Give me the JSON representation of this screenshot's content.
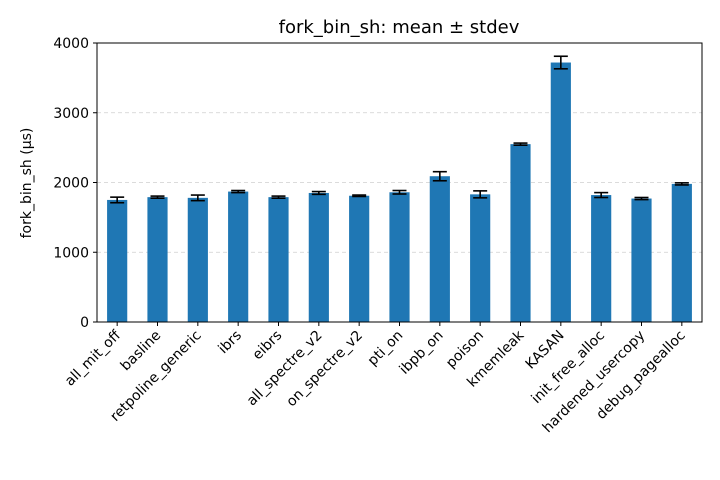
{
  "chart_data": {
    "type": "bar",
    "title": "fork_bin_sh: mean ± stdev",
    "xlabel": "",
    "ylabel": "fork_bin_sh (µs)",
    "ylim": [
      0,
      4000
    ],
    "yticks": [
      0,
      1000,
      2000,
      3000,
      4000
    ],
    "grid": "y-dashed",
    "color": "#1f77b4",
    "categories": [
      "all_mit_off",
      "basline",
      "retpoline_generic",
      "ibrs",
      "eibrs",
      "all_spectre_v2",
      "on_spectre_v2",
      "pti_on",
      "ibpb_on",
      "poison",
      "kmemleak",
      "KASAN",
      "init_free_alloc",
      "hardened_usercopy",
      "debug_pagealloc"
    ],
    "values": [
      1750,
      1790,
      1780,
      1870,
      1790,
      1850,
      1810,
      1860,
      2090,
      1830,
      2550,
      3720,
      1820,
      1770,
      1980
    ],
    "errors": [
      40,
      15,
      40,
      15,
      15,
      20,
      10,
      25,
      65,
      50,
      15,
      90,
      35,
      15,
      15
    ]
  }
}
